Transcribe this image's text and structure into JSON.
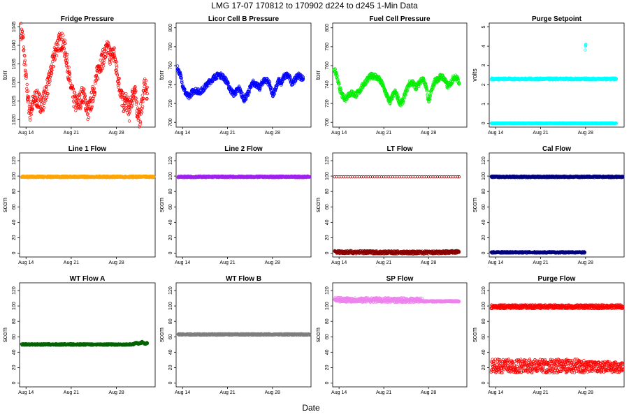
{
  "figure": {
    "title": "LMG   17-07    170812 to 170902    d224 to d245   1-Min Data",
    "xlabel": "Date"
  },
  "chart_data": [
    {
      "type": "scatter",
      "title": "Fridge Pressure",
      "ylabel": "torr",
      "ylim": [
        1018,
        1046
      ],
      "yticks": [
        1020,
        1025,
        1030,
        1035,
        1040,
        1045
      ],
      "xlim": [
        224,
        245
      ],
      "xticks": [
        {
          "pos": 225,
          "label": "Aug 14"
        },
        {
          "pos": 232,
          "label": "Aug 21"
        },
        {
          "pos": 239,
          "label": "Aug 28"
        }
      ],
      "series": [
        {
          "color": "#ff0000",
          "marker": "circle-open",
          "band": 2.5,
          "x": [
            224.2,
            224.5,
            224.8,
            225.2,
            225.6,
            226.0,
            226.5,
            227.0,
            227.5,
            228.0,
            228.5,
            229.0,
            229.5,
            229.8,
            230.2,
            230.6,
            231.0,
            231.4,
            231.8,
            232.3,
            232.8,
            233.3,
            233.8,
            234.2,
            234.6,
            235.0,
            235.5,
            236.0,
            236.4,
            236.8,
            237.3,
            237.7,
            238.1,
            238.6,
            239.0,
            239.4,
            239.8,
            240.2,
            240.6,
            241.0,
            241.4,
            241.8,
            242.2,
            242.6,
            243.0,
            243.4,
            243.8
          ],
          "y": [
            1044,
            1042,
            1035,
            1027,
            1022,
            1024,
            1026,
            1025,
            1024,
            1027,
            1030,
            1034,
            1038,
            1040,
            1041,
            1041,
            1039,
            1035,
            1030,
            1026,
            1024,
            1025,
            1027,
            1025,
            1022,
            1024,
            1028,
            1032,
            1035,
            1036,
            1038,
            1039,
            1037,
            1038,
            1034,
            1030,
            1026,
            1024,
            1025,
            1022,
            1026,
            1028,
            1023,
            1020,
            1025,
            1029,
            1027
          ]
        }
      ]
    },
    {
      "type": "scatter",
      "title": "Licor Cell B Pressure",
      "ylabel": "torr",
      "ylim": [
        695,
        805
      ],
      "yticks": [
        700,
        720,
        740,
        760,
        780,
        800
      ],
      "xlim": [
        224,
        245
      ],
      "xticks": [
        {
          "pos": 225,
          "label": "Aug 14"
        },
        {
          "pos": 232,
          "label": "Aug 21"
        },
        {
          "pos": 239,
          "label": "Aug 28"
        }
      ],
      "series": [
        {
          "color": "#0000ff",
          "marker": "circle-open",
          "band": 3,
          "x": [
            224.2,
            224.6,
            225.0,
            225.5,
            226.0,
            226.5,
            227.0,
            227.6,
            228.2,
            228.8,
            229.4,
            230.0,
            230.6,
            231.2,
            231.8,
            232.2,
            232.6,
            233.0,
            233.4,
            233.8,
            234.2,
            234.6,
            235.0,
            235.5,
            236.0,
            236.5,
            237.0,
            237.4,
            237.8,
            238.2,
            238.6,
            239.0,
            239.5,
            240.0,
            240.4,
            240.8,
            241.2,
            241.6,
            242.0,
            242.5,
            243.0,
            243.4,
            243.8
          ],
          "y": [
            757,
            752,
            740,
            730,
            727,
            732,
            734,
            732,
            735,
            740,
            744,
            748,
            750,
            749,
            744,
            738,
            733,
            730,
            733,
            736,
            730,
            724,
            728,
            736,
            742,
            740,
            736,
            742,
            745,
            744,
            740,
            728,
            735,
            745,
            742,
            748,
            750,
            748,
            742,
            745,
            750,
            748,
            746
          ]
        }
      ]
    },
    {
      "type": "scatter",
      "title": "Fuel Cell Pressure",
      "ylabel": "torr",
      "ylim": [
        695,
        805
      ],
      "yticks": [
        700,
        720,
        740,
        760,
        780,
        800
      ],
      "xlim": [
        224,
        245
      ],
      "xticks": [
        {
          "pos": 225,
          "label": "Aug 14"
        },
        {
          "pos": 232,
          "label": "Aug 21"
        },
        {
          "pos": 239,
          "label": "Aug 28"
        }
      ],
      "series": [
        {
          "color": "#00ee00",
          "marker": "circle-open",
          "band": 3,
          "x": [
            224.2,
            224.6,
            225.0,
            225.5,
            226.0,
            226.5,
            227.0,
            227.6,
            228.2,
            228.8,
            229.4,
            230.0,
            230.6,
            231.2,
            231.8,
            232.2,
            232.6,
            233.0,
            233.4,
            233.8,
            234.2,
            234.6,
            235.0,
            235.5,
            236.0,
            236.5,
            237.0,
            237.4,
            237.8,
            238.2,
            238.6,
            239.0,
            239.5,
            240.0,
            240.4,
            240.8,
            241.2,
            241.6,
            242.0,
            242.5,
            243.0,
            243.4,
            243.8
          ],
          "y": [
            757,
            750,
            738,
            728,
            725,
            730,
            731,
            729,
            733,
            740,
            745,
            749,
            749,
            746,
            740,
            733,
            726,
            722,
            728,
            732,
            726,
            719,
            723,
            733,
            741,
            742,
            737,
            740,
            745,
            745,
            738,
            722,
            734,
            744,
            745,
            748,
            748,
            744,
            738,
            742,
            748,
            747,
            742
          ]
        }
      ]
    },
    {
      "type": "scatter",
      "title": "Purge Setpoint",
      "ylabel": "volts",
      "ylim": [
        -0.2,
        5.2
      ],
      "yticks": [
        0,
        1,
        2,
        3,
        4,
        5
      ],
      "xlim": [
        224,
        245
      ],
      "xticks": [
        {
          "pos": 225,
          "label": "Aug 14"
        },
        {
          "pos": 232,
          "label": "Aug 21"
        },
        {
          "pos": 239,
          "label": "Aug 28"
        }
      ],
      "series": [
        {
          "color": "#00ffff",
          "marker": "circle-open",
          "band": 0.05,
          "x": [
            224.3,
            232,
            238.9,
            239.0,
            239.1,
            243.8
          ],
          "y": [
            2.3,
            2.3,
            2.3,
            2.3,
            2.3,
            2.3
          ]
        },
        {
          "color": "#00ffff",
          "marker": "circle-open",
          "band": 0.02,
          "x": [
            224.3,
            243.8
          ],
          "y": [
            0,
            0
          ]
        },
        {
          "color": "#00ffff",
          "marker": "circle-open",
          "band": 0.1,
          "x": [
            238.95,
            239.0,
            239.05
          ],
          "y": [
            3.9,
            4.0,
            4.1
          ]
        }
      ]
    },
    {
      "type": "scatter",
      "title": "Line 1 Flow",
      "ylabel": "sccm",
      "ylim": [
        -5,
        130
      ],
      "yticks": [
        0,
        20,
        40,
        60,
        80,
        100,
        120
      ],
      "xlim": [
        224,
        245
      ],
      "xticks": [
        {
          "pos": 225,
          "label": "Aug 14"
        },
        {
          "pos": 232,
          "label": "Aug 21"
        },
        {
          "pos": 239,
          "label": "Aug 28"
        }
      ],
      "series": [
        {
          "color": "#ffa500",
          "marker": "circle-open",
          "band": 1,
          "x": [
            224.3,
            244.8
          ],
          "y": [
            99,
            99
          ]
        }
      ]
    },
    {
      "type": "scatter",
      "title": "Line 2 Flow",
      "ylabel": "sccm",
      "ylim": [
        -5,
        130
      ],
      "yticks": [
        0,
        20,
        40,
        60,
        80,
        100,
        120
      ],
      "xlim": [
        224,
        245
      ],
      "xticks": [
        {
          "pos": 225,
          "label": "Aug 14"
        },
        {
          "pos": 232,
          "label": "Aug 21"
        },
        {
          "pos": 239,
          "label": "Aug 28"
        }
      ],
      "series": [
        {
          "color": "#a020f0",
          "marker": "circle-open",
          "band": 1,
          "x": [
            224.3,
            244.8
          ],
          "y": [
            99,
            99
          ]
        }
      ]
    },
    {
      "type": "scatter",
      "title": "LT Flow",
      "ylabel": "sccm",
      "ylim": [
        -5,
        130
      ],
      "yticks": [
        0,
        20,
        40,
        60,
        80,
        100,
        120
      ],
      "xlim": [
        224,
        245
      ],
      "xticks": [
        {
          "pos": 225,
          "label": "Aug 14"
        },
        {
          "pos": 232,
          "label": "Aug 21"
        },
        {
          "pos": 239,
          "label": "Aug 28"
        }
      ],
      "series": [
        {
          "color": "#8b0000",
          "marker": "circle-open",
          "band": 0,
          "spacing": 0.35,
          "x": [
            224.3,
            243.8
          ],
          "y": [
            99,
            99
          ]
        },
        {
          "color": "#8b0000",
          "marker": "circle-open",
          "band": 2,
          "x": [
            224.3,
            228,
            232,
            236,
            240,
            243.8
          ],
          "y": [
            1.5,
            1.2,
            1.0,
            0.8,
            0.8,
            1.5
          ]
        }
      ]
    },
    {
      "type": "scatter",
      "title": "Cal Flow",
      "ylabel": "sccm",
      "ylim": [
        -5,
        130
      ],
      "yticks": [
        0,
        20,
        40,
        60,
        80,
        100,
        120
      ],
      "xlim": [
        224,
        245
      ],
      "xticks": [
        {
          "pos": 225,
          "label": "Aug 14"
        },
        {
          "pos": 232,
          "label": "Aug 21"
        },
        {
          "pos": 239,
          "label": "Aug 28"
        }
      ],
      "series": [
        {
          "color": "#000080",
          "marker": "circle-open",
          "band": 1,
          "x": [
            224.3,
            244.8
          ],
          "y": [
            99,
            99
          ]
        },
        {
          "color": "#000080",
          "marker": "circle-open",
          "band": 1,
          "x": [
            224.3,
            238.9
          ],
          "y": [
            1,
            1
          ]
        }
      ]
    },
    {
      "type": "scatter",
      "title": "WT Flow A",
      "ylabel": "sccm",
      "ylim": [
        -5,
        130
      ],
      "yticks": [
        0,
        20,
        40,
        60,
        80,
        100,
        120
      ],
      "xlim": [
        224,
        245
      ],
      "xticks": [
        {
          "pos": 225,
          "label": "Aug 14"
        },
        {
          "pos": 232,
          "label": "Aug 21"
        },
        {
          "pos": 239,
          "label": "Aug 28"
        }
      ],
      "series": [
        {
          "color": "#006400",
          "marker": "circle-open",
          "band": 1,
          "x": [
            224.3,
            241.5,
            242.0,
            242.5,
            243.0,
            243.4,
            243.8
          ],
          "y": [
            50,
            50,
            52,
            51,
            53,
            51,
            52
          ]
        }
      ]
    },
    {
      "type": "scatter",
      "title": "WT Flow B",
      "ylabel": "sccm",
      "ylim": [
        -5,
        130
      ],
      "yticks": [
        0,
        20,
        40,
        60,
        80,
        100,
        120
      ],
      "xlim": [
        224,
        245
      ],
      "xticks": [
        {
          "pos": 225,
          "label": "Aug 14"
        },
        {
          "pos": 232,
          "label": "Aug 21"
        },
        {
          "pos": 239,
          "label": "Aug 28"
        }
      ],
      "series": [
        {
          "color": "#7f7f7f",
          "marker": "circle-open",
          "band": 1,
          "x": [
            224.3,
            244.8
          ],
          "y": [
            63,
            63
          ]
        }
      ]
    },
    {
      "type": "scatter",
      "title": "SP Flow",
      "ylabel": "sccm",
      "ylim": [
        -5,
        130
      ],
      "yticks": [
        0,
        20,
        40,
        60,
        80,
        100,
        120
      ],
      "xlim": [
        224,
        245
      ],
      "xticks": [
        {
          "pos": 225,
          "label": "Aug 14"
        },
        {
          "pos": 232,
          "label": "Aug 21"
        },
        {
          "pos": 239,
          "label": "Aug 28"
        }
      ],
      "series": [
        {
          "color": "#ee82ee",
          "marker": "circle-open",
          "band": 3,
          "x": [
            224.3,
            238.0
          ],
          "y": [
            108,
            107.5
          ]
        },
        {
          "color": "#ee82ee",
          "marker": "circle-open",
          "band": 1,
          "x": [
            238.0,
            243.8
          ],
          "y": [
            106,
            106
          ]
        }
      ]
    },
    {
      "type": "scatter",
      "title": "Purge Flow",
      "ylabel": "sccm",
      "ylim": [
        -5,
        130
      ],
      "yticks": [
        0,
        20,
        40,
        60,
        80,
        100,
        120
      ],
      "xlim": [
        224,
        245
      ],
      "xticks": [
        {
          "pos": 225,
          "label": "Aug 14"
        },
        {
          "pos": 232,
          "label": "Aug 21"
        },
        {
          "pos": 239,
          "label": "Aug 28"
        }
      ],
      "series": [
        {
          "color": "#ff0000",
          "marker": "circle-open",
          "band": 2.5,
          "x": [
            224.3,
            244.8
          ],
          "y": [
            99,
            99
          ]
        },
        {
          "color": "#ff0000",
          "marker": "circle-open",
          "band": 9,
          "x": [
            224.3,
            238.9
          ],
          "y": [
            22,
            22
          ]
        },
        {
          "color": "#ff0000",
          "marker": "circle-open",
          "band": 7,
          "x": [
            238.9,
            244.8
          ],
          "y": [
            21,
            21
          ]
        }
      ]
    }
  ]
}
